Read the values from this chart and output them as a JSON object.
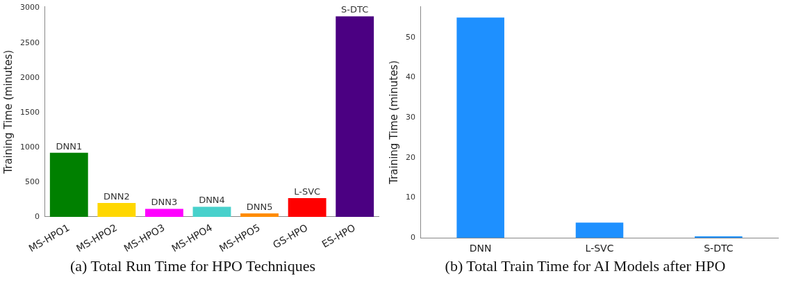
{
  "chart_data": [
    {
      "type": "bar",
      "title": "(a) Total Run Time for HPO Techniques",
      "ylabel": "Training Time (minutes)",
      "categories": [
        "MS-HPO1",
        "MS-HPO2",
        "MS-HPO3",
        "MS-HPO4",
        "MS-HPO5",
        "GS-HPO",
        "ES-HPO"
      ],
      "values": [
        920,
        200,
        115,
        145,
        50,
        270,
        2880
      ],
      "colors": [
        "#008000",
        "#ffd700",
        "#ff00ff",
        "#48d1cc",
        "#ff8c00",
        "#ff0000",
        "#4b0082"
      ],
      "ylim": [
        0,
        3020
      ],
      "yticks": [
        0,
        500,
        1000,
        1500,
        2000,
        2500,
        3000
      ],
      "grid": false,
      "legend": false,
      "annotations": [
        {
          "text": "DNN1",
          "x": "MS-HPO1",
          "y": 920
        },
        {
          "text": "DNN2",
          "x": "MS-HPO2",
          "y": 200
        },
        {
          "text": "DNN3",
          "x": "MS-HPO3",
          "y": 115
        },
        {
          "text": "DNN4",
          "x": "MS-HPO4",
          "y": 145
        },
        {
          "text": "DNN5",
          "x": "MS-HPO5",
          "y": 50
        },
        {
          "text": "L-SVC",
          "x": "GS-HPO",
          "y": 270
        },
        {
          "text": "S-DTC",
          "x": "ES-HPO",
          "y": 2880
        }
      ]
    },
    {
      "type": "bar",
      "title": "(b) Total Train Time for AI Models after HPO",
      "ylabel": "Training Time (minutes)",
      "categories": [
        "DNN",
        "L-SVC",
        "S-DTC"
      ],
      "values": [
        55,
        3.8,
        0.4
      ],
      "color": "#1e90ff",
      "ylim": [
        0,
        57.7
      ],
      "yticks": [
        0,
        10,
        20,
        30,
        40,
        50
      ],
      "grid": false,
      "legend": false
    }
  ]
}
